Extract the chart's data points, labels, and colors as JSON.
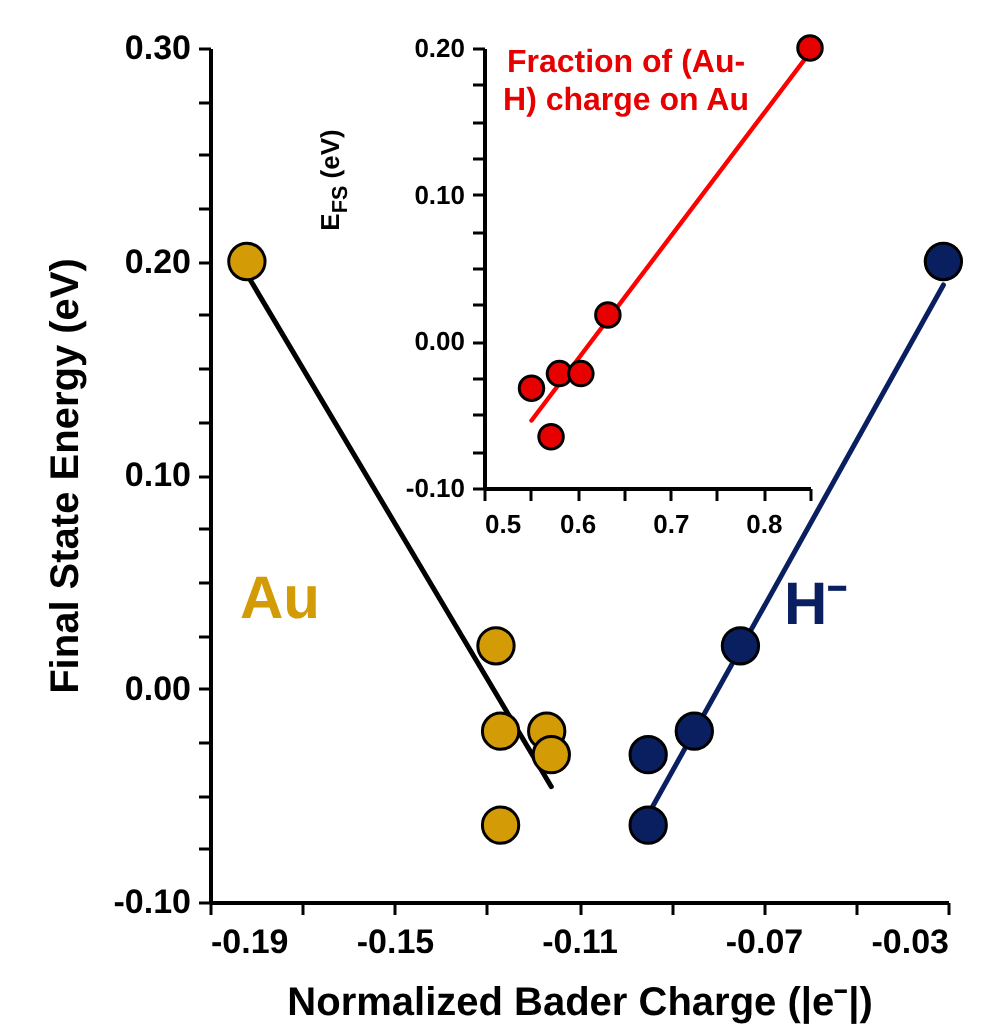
{
  "chart_data": [
    {
      "type": "scatter",
      "xlabel": "Normalized Bader Charge (|e⁻|)",
      "ylabel": "Final State Energy (eV)",
      "xlim": [
        -0.19,
        -0.03
      ],
      "ylim": [
        -0.1,
        0.3
      ],
      "xticks": [
        {
          "value": -0.19,
          "label": "-0.19"
        },
        {
          "value": -0.17,
          "label": null
        },
        {
          "value": -0.15,
          "label": "-0.15"
        },
        {
          "value": -0.13,
          "label": null
        },
        {
          "value": -0.11,
          "label": "-0.11"
        },
        {
          "value": -0.09,
          "label": null
        },
        {
          "value": -0.07,
          "label": "-0.07"
        },
        {
          "value": -0.05,
          "label": null
        },
        {
          "value": -0.03,
          "label": "-0.03"
        }
      ],
      "yticks": [
        {
          "value": -0.1,
          "label": "-0.10"
        },
        {
          "value": -0.075,
          "label": null
        },
        {
          "value": -0.05,
          "label": null
        },
        {
          "value": -0.025,
          "label": null
        },
        {
          "value": 0,
          "label": "0.00"
        },
        {
          "value": 0.025,
          "label": null
        },
        {
          "value": 0.05,
          "label": null
        },
        {
          "value": 0.075,
          "label": null
        },
        {
          "value": 0.1,
          "label": "0.10"
        },
        {
          "value": 0.125,
          "label": null
        },
        {
          "value": 0.15,
          "label": null
        },
        {
          "value": 0.175,
          "label": null
        },
        {
          "value": 0.2,
          "label": "0.20"
        },
        {
          "value": 0.225,
          "label": null
        },
        {
          "value": 0.25,
          "label": null
        },
        {
          "value": 0.275,
          "label": null
        },
        {
          "value": 0.3,
          "label": "0.30"
        }
      ],
      "grid": false,
      "legend": false,
      "series": [
        {
          "name": "Au",
          "color": "#d39b06",
          "marker": "circle",
          "x": [
            -0.182,
            -0.128,
            -0.127,
            -0.117,
            -0.116,
            -0.127
          ],
          "values": [
            0.2,
            0.02,
            -0.02,
            -0.02,
            -0.031,
            -0.064
          ]
        },
        {
          "type": "line",
          "color": "#000000",
          "marker": "none",
          "x": [
            -0.182,
            -0.116
          ],
          "values": [
            0.194,
            -0.046
          ]
        },
        {
          "name": "H⁻",
          "color": "#0a1f60",
          "marker": "circle",
          "x": [
            -0.095,
            -0.095,
            -0.085,
            -0.075,
            -0.031
          ],
          "values": [
            -0.031,
            -0.064,
            -0.02,
            0.02,
            0.2
          ]
        },
        {
          "type": "line",
          "color": "#0a1f60",
          "marker": "none",
          "x": [
            -0.095,
            -0.031
          ],
          "values": [
            -0.059,
            0.189
          ]
        }
      ]
    },
    {
      "type": "scatter",
      "ylabel": "E$_{FS}$ (eV)",
      "xlim": [
        0.5,
        0.85
      ],
      "ylim": [
        -0.1,
        0.2
      ],
      "xticks": [
        {
          "value": 0.5,
          "label": "0.5"
        },
        {
          "value": 0.55,
          "label": null
        },
        {
          "value": 0.6,
          "label": "0.6"
        },
        {
          "value": 0.65,
          "label": null
        },
        {
          "value": 0.7,
          "label": "0.7"
        },
        {
          "value": 0.75,
          "label": null
        },
        {
          "value": 0.8,
          "label": "0.8"
        },
        {
          "value": 0.85,
          "label": null
        }
      ],
      "yticks": [
        {
          "value": -0.1,
          "label": "-0.10"
        },
        {
          "value": -0.075,
          "label": null
        },
        {
          "value": -0.05,
          "label": null
        },
        {
          "value": -0.025,
          "label": null
        },
        {
          "value": 0,
          "label": "0.00"
        },
        {
          "value": 0.025,
          "label": null
        },
        {
          "value": 0.05,
          "label": null
        },
        {
          "value": 0.075,
          "label": null
        },
        {
          "value": 0.1,
          "label": "0.10"
        },
        {
          "value": 0.125,
          "label": null
        },
        {
          "value": 0.15,
          "label": null
        },
        {
          "value": 0.175,
          "label": null
        },
        {
          "value": 0.2,
          "label": "0.20"
        }
      ],
      "grid": false,
      "legend": false,
      "series": [
        {
          "name": "Fraction of (Au-H) charge on Au",
          "color": "#e60000",
          "marker": "circle",
          "x": [
            0.551,
            0.572,
            0.581,
            0.604,
            0.633,
            0.85
          ],
          "values": [
            -0.032,
            -0.065,
            -0.022,
            -0.022,
            0.018,
            0.2
          ]
        },
        {
          "type": "line",
          "color": "#ff0000",
          "marker": "none",
          "x": [
            0.551,
            0.85
          ],
          "values": [
            -0.054,
            0.197
          ]
        }
      ]
    }
  ]
}
